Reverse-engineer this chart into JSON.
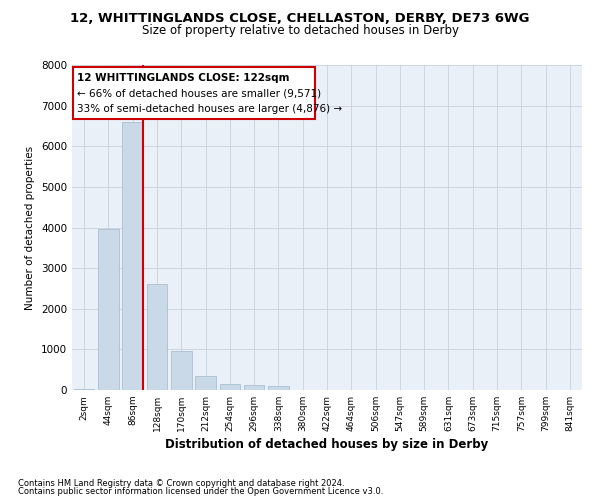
{
  "title": "12, WHITTINGLANDS CLOSE, CHELLASTON, DERBY, DE73 6WG",
  "subtitle": "Size of property relative to detached houses in Derby",
  "xlabel": "Distribution of detached houses by size in Derby",
  "ylabel": "Number of detached properties",
  "bar_color": "#c9d9e8",
  "bar_edge_color": "#a0b8cc",
  "grid_color": "#c8d0dc",
  "bg_color": "#eaf0f8",
  "red_line_color": "#cc0000",
  "categories": [
    "2sqm",
    "44sqm",
    "86sqm",
    "128sqm",
    "170sqm",
    "212sqm",
    "254sqm",
    "296sqm",
    "338sqm",
    "380sqm",
    "422sqm",
    "464sqm",
    "506sqm",
    "547sqm",
    "589sqm",
    "631sqm",
    "673sqm",
    "715sqm",
    "757sqm",
    "799sqm",
    "841sqm"
  ],
  "bar_values": [
    35,
    3970,
    6600,
    2620,
    960,
    340,
    145,
    120,
    100,
    0,
    0,
    0,
    0,
    0,
    0,
    0,
    0,
    0,
    0,
    0,
    0
  ],
  "ylim": [
    0,
    8000
  ],
  "yticks": [
    0,
    1000,
    2000,
    3000,
    4000,
    5000,
    6000,
    7000,
    8000
  ],
  "annotation_line1": "12 WHITTINGLANDS CLOSE: 122sqm",
  "annotation_line2": "← 66% of detached houses are smaller (9,571)",
  "annotation_line3": "33% of semi-detached houses are larger (4,876) →",
  "footer_line1": "Contains HM Land Registry data © Crown copyright and database right 2024.",
  "footer_line2": "Contains public sector information licensed under the Open Government Licence v3.0."
}
